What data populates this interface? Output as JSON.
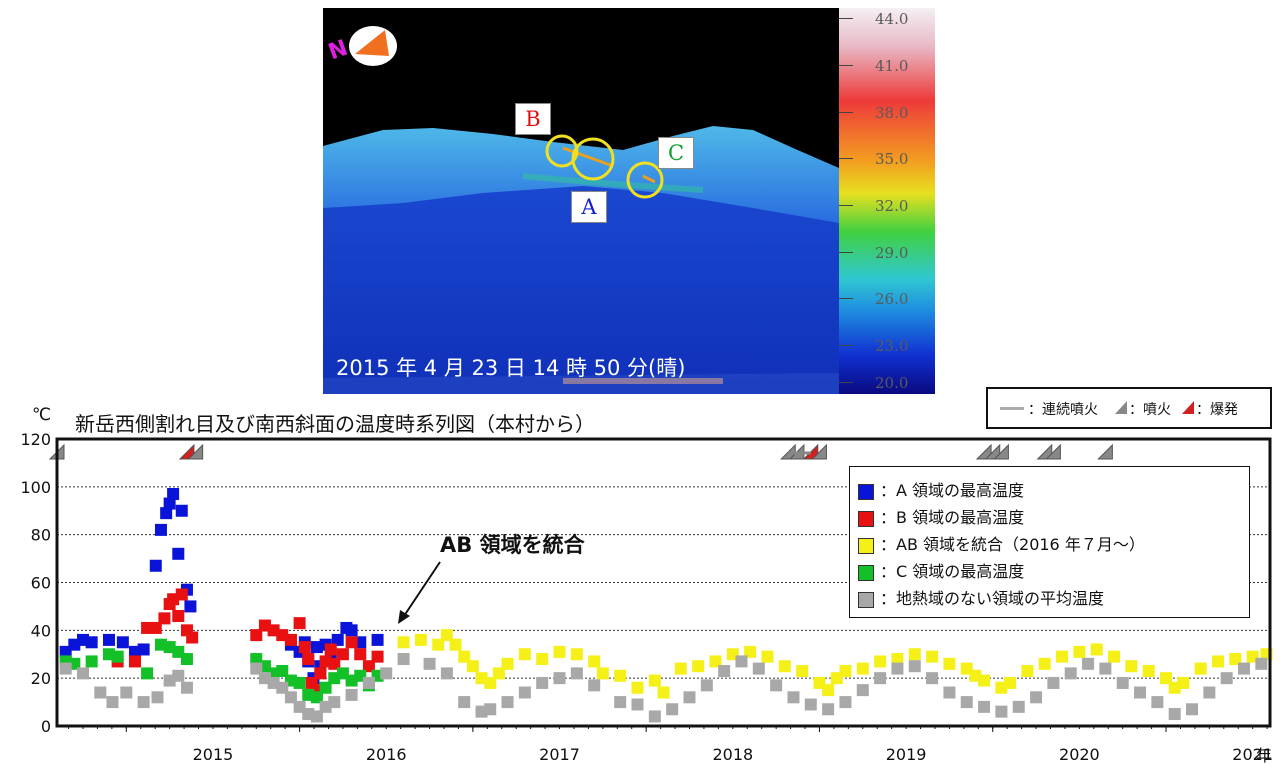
{
  "photo": {
    "north_marker": "N",
    "labels": {
      "a": "A",
      "b": "B",
      "c": "C"
    },
    "caption": "2015 年 4 月 23 日 14 時 50 分(晴)",
    "scale_ticks": [
      "44.0",
      "41.0",
      "38.0",
      "35.0",
      "32.0",
      "29.0",
      "26.0",
      "23.0",
      "20.0"
    ]
  },
  "eruption_legend": {
    "continuous": "：連続噴火",
    "eruption": "：噴火",
    "explosion": "：爆発"
  },
  "annotation": "AB 領域を統合",
  "chart_data": {
    "type": "scatter",
    "title": "新岳西側割れ目及び南西斜面の温度時系列図（本村から）",
    "ylabel": "℃",
    "xlabel": "年",
    "ylim": [
      0,
      120
    ],
    "xlim": [
      2014.6,
      2021.6
    ],
    "yticks": [
      0,
      20,
      40,
      60,
      80,
      100,
      120
    ],
    "xticks": [
      "2015",
      "2016",
      "2017",
      "2018",
      "2019",
      "2020",
      "2021"
    ],
    "grid": true,
    "legend_position": "top-right",
    "series": [
      {
        "name": "：A 領域の最高温度",
        "color": "#0a14d8",
        "points": [
          [
            2014.65,
            31
          ],
          [
            2014.7,
            34
          ],
          [
            2014.75,
            36
          ],
          [
            2014.8,
            35
          ],
          [
            2014.9,
            36
          ],
          [
            2014.98,
            35
          ],
          [
            2015.05,
            31
          ],
          [
            2015.1,
            32
          ],
          [
            2015.17,
            67
          ],
          [
            2015.2,
            82
          ],
          [
            2015.23,
            89
          ],
          [
            2015.25,
            93
          ],
          [
            2015.27,
            97
          ],
          [
            2015.3,
            72
          ],
          [
            2015.32,
            90
          ],
          [
            2015.35,
            57
          ],
          [
            2015.37,
            50
          ],
          [
            2015.95,
            34
          ],
          [
            2016.0,
            31
          ],
          [
            2016.03,
            35
          ],
          [
            2016.05,
            27
          ],
          [
            2016.08,
            20
          ],
          [
            2016.1,
            33
          ],
          [
            2016.12,
            25
          ],
          [
            2016.15,
            34
          ],
          [
            2016.18,
            30
          ],
          [
            2016.22,
            36
          ],
          [
            2016.27,
            41
          ],
          [
            2016.3,
            40
          ],
          [
            2016.35,
            35
          ],
          [
            2016.45,
            36
          ]
        ]
      },
      {
        "name": "：B 領域の最高温度",
        "color": "#e81010",
        "points": [
          [
            2014.95,
            27
          ],
          [
            2015.05,
            27
          ],
          [
            2015.12,
            41
          ],
          [
            2015.17,
            41
          ],
          [
            2015.22,
            45
          ],
          [
            2015.25,
            51
          ],
          [
            2015.27,
            53
          ],
          [
            2015.3,
            46
          ],
          [
            2015.32,
            55
          ],
          [
            2015.35,
            40
          ],
          [
            2015.38,
            37
          ],
          [
            2015.75,
            38
          ],
          [
            2015.8,
            42
          ],
          [
            2015.85,
            40
          ],
          [
            2015.9,
            38
          ],
          [
            2015.95,
            36
          ],
          [
            2016.0,
            43
          ],
          [
            2016.03,
            33
          ],
          [
            2016.05,
            28
          ],
          [
            2016.07,
            18
          ],
          [
            2016.1,
            15
          ],
          [
            2016.12,
            22
          ],
          [
            2016.15,
            27
          ],
          [
            2016.18,
            32
          ],
          [
            2016.2,
            26
          ],
          [
            2016.25,
            30
          ],
          [
            2016.3,
            35
          ],
          [
            2016.35,
            30
          ],
          [
            2016.4,
            25
          ],
          [
            2016.45,
            29
          ]
        ]
      },
      {
        "name": "：AB 領域を統合（2016 年７月～）",
        "color": "#f4f018",
        "points": [
          [
            2016.6,
            35
          ],
          [
            2016.7,
            36
          ],
          [
            2016.8,
            34
          ],
          [
            2016.85,
            38
          ],
          [
            2016.9,
            34
          ],
          [
            2016.95,
            29
          ],
          [
            2017.0,
            25
          ],
          [
            2017.05,
            20
          ],
          [
            2017.1,
            18
          ],
          [
            2017.15,
            22
          ],
          [
            2017.2,
            26
          ],
          [
            2017.3,
            30
          ],
          [
            2017.4,
            28
          ],
          [
            2017.5,
            31
          ],
          [
            2017.6,
            30
          ],
          [
            2017.7,
            27
          ],
          [
            2017.75,
            22
          ],
          [
            2017.85,
            21
          ],
          [
            2017.95,
            16
          ],
          [
            2018.05,
            19
          ],
          [
            2018.1,
            14
          ],
          [
            2018.2,
            24
          ],
          [
            2018.3,
            25
          ],
          [
            2018.4,
            27
          ],
          [
            2018.5,
            30
          ],
          [
            2018.6,
            31
          ],
          [
            2018.7,
            29
          ],
          [
            2018.8,
            25
          ],
          [
            2018.9,
            23
          ],
          [
            2019.0,
            18
          ],
          [
            2019.05,
            15
          ],
          [
            2019.1,
            20
          ],
          [
            2019.15,
            23
          ],
          [
            2019.25,
            24
          ],
          [
            2019.35,
            27
          ],
          [
            2019.45,
            28
          ],
          [
            2019.55,
            30
          ],
          [
            2019.65,
            29
          ],
          [
            2019.75,
            26
          ],
          [
            2019.85,
            24
          ],
          [
            2019.9,
            21
          ],
          [
            2019.95,
            19
          ],
          [
            2020.05,
            16
          ],
          [
            2020.1,
            18
          ],
          [
            2020.2,
            23
          ],
          [
            2020.3,
            26
          ],
          [
            2020.4,
            29
          ],
          [
            2020.5,
            31
          ],
          [
            2020.6,
            32
          ],
          [
            2020.7,
            29
          ],
          [
            2020.8,
            25
          ],
          [
            2020.9,
            23
          ],
          [
            2021.0,
            20
          ],
          [
            2021.05,
            16
          ],
          [
            2021.1,
            18
          ],
          [
            2021.2,
            24
          ],
          [
            2021.3,
            27
          ],
          [
            2021.4,
            28
          ],
          [
            2021.5,
            29
          ],
          [
            2021.58,
            30
          ]
        ]
      },
      {
        "name": "：C 領域の最高温度",
        "color": "#14c028",
        "points": [
          [
            2014.65,
            27
          ],
          [
            2014.7,
            26
          ],
          [
            2014.8,
            27
          ],
          [
            2014.9,
            30
          ],
          [
            2014.95,
            29
          ],
          [
            2015.12,
            22
          ],
          [
            2015.2,
            34
          ],
          [
            2015.25,
            33
          ],
          [
            2015.3,
            31
          ],
          [
            2015.35,
            28
          ],
          [
            2015.75,
            28
          ],
          [
            2015.8,
            25
          ],
          [
            2015.85,
            22
          ],
          [
            2015.9,
            23
          ],
          [
            2015.95,
            19
          ],
          [
            2016.0,
            18
          ],
          [
            2016.05,
            13
          ],
          [
            2016.1,
            12
          ],
          [
            2016.15,
            16
          ],
          [
            2016.2,
            20
          ],
          [
            2016.25,
            22
          ],
          [
            2016.3,
            19
          ],
          [
            2016.35,
            21
          ],
          [
            2016.4,
            17
          ],
          [
            2016.45,
            21
          ]
        ]
      },
      {
        "name": "：地熱域のない領域の平均温度",
        "color": "#a8a8a8",
        "points": [
          [
            2014.65,
            24
          ],
          [
            2014.75,
            22
          ],
          [
            2014.85,
            14
          ],
          [
            2014.92,
            10
          ],
          [
            2015.0,
            14
          ],
          [
            2015.1,
            10
          ],
          [
            2015.18,
            12
          ],
          [
            2015.25,
            19
          ],
          [
            2015.3,
            21
          ],
          [
            2015.35,
            16
          ],
          [
            2015.75,
            24
          ],
          [
            2015.8,
            20
          ],
          [
            2015.85,
            18
          ],
          [
            2015.9,
            16
          ],
          [
            2015.95,
            12
          ],
          [
            2016.0,
            8
          ],
          [
            2016.05,
            5
          ],
          [
            2016.1,
            4
          ],
          [
            2016.15,
            8
          ],
          [
            2016.2,
            10
          ],
          [
            2016.3,
            13
          ],
          [
            2016.4,
            18
          ],
          [
            2016.5,
            22
          ],
          [
            2016.6,
            28
          ],
          [
            2016.75,
            26
          ],
          [
            2016.85,
            22
          ],
          [
            2016.95,
            10
          ],
          [
            2017.05,
            6
          ],
          [
            2017.1,
            7
          ],
          [
            2017.2,
            10
          ],
          [
            2017.3,
            14
          ],
          [
            2017.4,
            18
          ],
          [
            2017.5,
            20
          ],
          [
            2017.6,
            22
          ],
          [
            2017.7,
            17
          ],
          [
            2017.85,
            10
          ],
          [
            2017.95,
            9
          ],
          [
            2018.05,
            4
          ],
          [
            2018.15,
            7
          ],
          [
            2018.25,
            12
          ],
          [
            2018.35,
            17
          ],
          [
            2018.45,
            23
          ],
          [
            2018.55,
            27
          ],
          [
            2018.65,
            24
          ],
          [
            2018.75,
            17
          ],
          [
            2018.85,
            12
          ],
          [
            2018.95,
            9
          ],
          [
            2019.05,
            7
          ],
          [
            2019.15,
            10
          ],
          [
            2019.25,
            15
          ],
          [
            2019.35,
            20
          ],
          [
            2019.45,
            24
          ],
          [
            2019.55,
            25
          ],
          [
            2019.65,
            20
          ],
          [
            2019.75,
            14
          ],
          [
            2019.85,
            10
          ],
          [
            2019.95,
            8
          ],
          [
            2020.05,
            6
          ],
          [
            2020.15,
            8
          ],
          [
            2020.25,
            12
          ],
          [
            2020.35,
            18
          ],
          [
            2020.45,
            22
          ],
          [
            2020.55,
            26
          ],
          [
            2020.65,
            24
          ],
          [
            2020.75,
            18
          ],
          [
            2020.85,
            14
          ],
          [
            2020.95,
            10
          ],
          [
            2021.05,
            5
          ],
          [
            2021.15,
            7
          ],
          [
            2021.25,
            14
          ],
          [
            2021.35,
            20
          ],
          [
            2021.45,
            24
          ],
          [
            2021.55,
            26
          ]
        ]
      }
    ]
  }
}
